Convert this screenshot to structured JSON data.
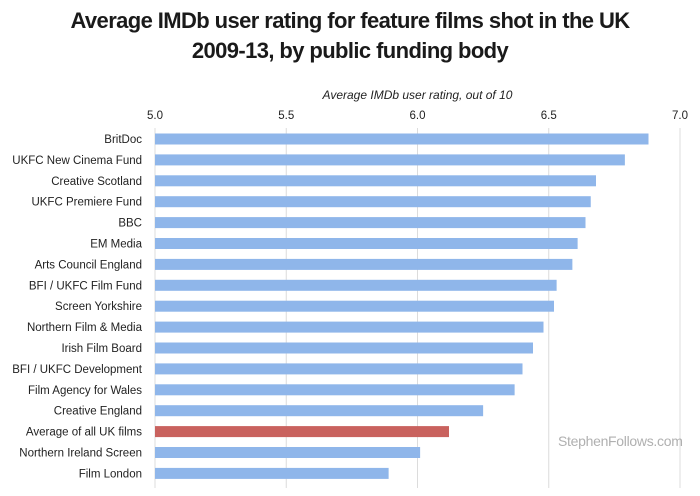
{
  "chart_data": {
    "type": "bar",
    "orientation": "horizontal",
    "title_lines": [
      "Average IMDb user rating for feature films shot in the UK",
      "2009-13, by public funding body"
    ],
    "xlabel": "Average IMDb user rating, out of 10",
    "ylabel": "",
    "xlim": [
      5.0,
      7.0
    ],
    "xticks": [
      "5.0",
      "5.5",
      "6.0",
      "6.5",
      "7.0"
    ],
    "grid": true,
    "categories": [
      "BritDoc",
      "UKFC New Cinema Fund",
      "Creative Scotland",
      "UKFC Premiere Fund",
      "BBC",
      "EM Media",
      "Arts Council England",
      "BFI / UKFC Film Fund",
      "Screen Yorkshire",
      "Northern Film & Media",
      "Irish Film Board",
      "BFI / UKFC Development",
      "Film Agency for Wales",
      "Creative England",
      "Average of all UK films",
      "Northern Ireland Screen",
      "Film London"
    ],
    "values": [
      6.88,
      6.79,
      6.68,
      6.66,
      6.64,
      6.61,
      6.59,
      6.53,
      6.52,
      6.48,
      6.44,
      6.4,
      6.37,
      6.25,
      6.12,
      6.01,
      5.89
    ],
    "bar_color": "#8fb6ea",
    "highlight_color": "#c9625e",
    "highlight_category": "Average of all UK films"
  },
  "watermark": "StephenFollows.com"
}
